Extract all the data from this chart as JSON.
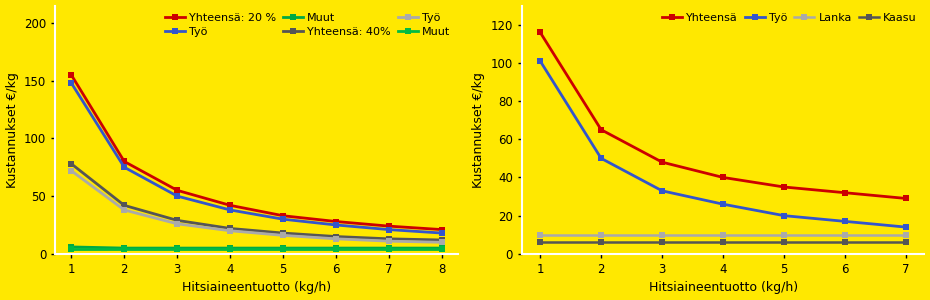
{
  "background_color": "#FFE800",
  "left_chart": {
    "x": [
      1,
      2,
      3,
      4,
      5,
      6,
      7,
      8
    ],
    "series": [
      {
        "label": "Yhteensä: 20 %",
        "color": "#CC0000",
        "marker": "s",
        "linewidth": 2.0,
        "y": [
          155,
          80,
          55,
          42,
          33,
          28,
          24,
          21
        ]
      },
      {
        "label": "Työ",
        "color": "#3355CC",
        "marker": "s",
        "linewidth": 2.0,
        "y": [
          148,
          75,
          50,
          38,
          30,
          25,
          21,
          18
        ]
      },
      {
        "label": "Muut",
        "color": "#00AA44",
        "marker": "s",
        "linewidth": 2.0,
        "y": [
          6,
          5,
          5,
          5,
          5,
          5,
          5,
          5
        ]
      },
      {
        "label": "Yhteensä: 40%",
        "color": "#555555",
        "marker": "s",
        "linewidth": 2.0,
        "y": [
          78,
          42,
          29,
          22,
          18,
          15,
          13,
          12
        ]
      },
      {
        "label": "Työ",
        "color": "#AAAAAA",
        "marker": "s",
        "linewidth": 2.0,
        "y": [
          72,
          38,
          26,
          20,
          16,
          13,
          11,
          10
        ]
      },
      {
        "label": "Muut",
        "color": "#00BB44",
        "marker": "s",
        "linewidth": 2.0,
        "y": [
          4,
          4,
          4,
          4,
          4,
          4,
          4,
          4
        ]
      }
    ],
    "ylabel": "Kustannukset €/kg",
    "xlabel": "Hitsiaineentuotto (kg/h)",
    "ylim": [
      0,
      215
    ],
    "yticks": [
      0,
      50,
      100,
      150,
      200
    ],
    "xlim_min": 0.7,
    "xlim_max": 8.3,
    "xticks": [
      1,
      2,
      3,
      4,
      5,
      6,
      7,
      8
    ]
  },
  "right_chart": {
    "x": [
      1,
      2,
      3,
      4,
      5,
      6,
      7
    ],
    "series": [
      {
        "label": "Yhteensä",
        "color": "#CC0000",
        "marker": "s",
        "linewidth": 2.0,
        "y": [
          116,
          65,
          48,
          40,
          35,
          32,
          29
        ]
      },
      {
        "label": "Työ",
        "color": "#3355CC",
        "marker": "s",
        "linewidth": 2.0,
        "y": [
          101,
          50,
          33,
          26,
          20,
          17,
          14
        ]
      },
      {
        "label": "Lanka",
        "color": "#AAAAAA",
        "marker": "s",
        "linewidth": 1.8,
        "y": [
          10,
          10,
          10,
          10,
          10,
          10,
          10
        ]
      },
      {
        "label": "Kaasu",
        "color": "#555555",
        "marker": "s",
        "linewidth": 1.8,
        "y": [
          6,
          6,
          6,
          6,
          6,
          6,
          6
        ]
      }
    ],
    "ylabel": "Kustannukset €/kg",
    "xlabel": "Hitsiaineentuotto (kg/h)",
    "ylim": [
      0,
      130
    ],
    "yticks": [
      0,
      20,
      40,
      60,
      80,
      100,
      120
    ],
    "xlim_min": 0.7,
    "xlim_max": 7.3,
    "xticks": [
      1,
      2,
      3,
      4,
      5,
      6,
      7
    ]
  },
  "legend_fontsize": 8.0,
  "axis_fontsize": 9,
  "tick_fontsize": 8.5,
  "marker_size": 5
}
